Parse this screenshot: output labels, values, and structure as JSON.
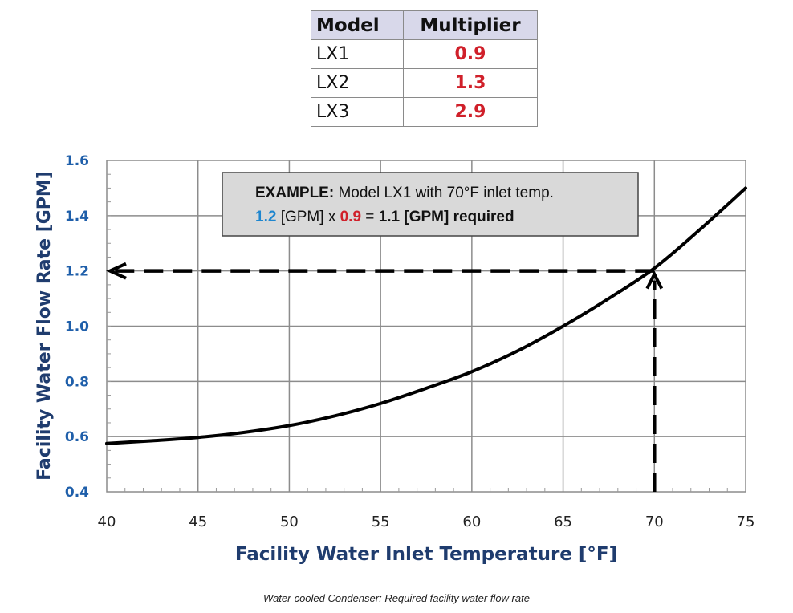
{
  "table": {
    "headers": [
      "Model",
      "Multiplier"
    ],
    "rows": [
      {
        "model": "LX1",
        "multiplier": "0.9"
      },
      {
        "model": "LX2",
        "multiplier": "1.3"
      },
      {
        "model": "LX3",
        "multiplier": "2.9"
      }
    ],
    "multiplier_color": "#d0202a"
  },
  "chart_data": {
    "type": "line",
    "xlabel": "Facility Water Inlet Temperature [°F]",
    "ylabel": "Facility Water Flow Rate [GPM]",
    "xlim": [
      40,
      75
    ],
    "ylim": [
      0.4,
      1.6
    ],
    "x_ticks": [
      "40",
      "45",
      "50",
      "55",
      "60",
      "65",
      "70",
      "75"
    ],
    "y_ticks": [
      "0.4",
      "0.6",
      "0.8",
      "1.0",
      "1.2",
      "1.4",
      "1.6"
    ],
    "grid": true,
    "series": [
      {
        "x": [
          40,
          42.5,
          45,
          47.5,
          50,
          52.5,
          55,
          57.5,
          60,
          62.5,
          65,
          67.5,
          70,
          72.5,
          75
        ],
        "y": [
          0.575,
          0.585,
          0.597,
          0.615,
          0.64,
          0.675,
          0.72,
          0.775,
          0.835,
          0.91,
          1.0,
          1.1,
          1.21,
          1.35,
          1.5
        ]
      }
    ],
    "example_guides": {
      "x": 70,
      "y": 1.2
    },
    "annotation": {
      "line1_bold": "EXAMPLE:",
      "line1_rest": " Model LX1 with 70°F inlet temp.",
      "val1": "1.2",
      "unit1": " [GPM] x ",
      "val2": "0.9",
      "eq": " = ",
      "result": "1.1 [GPM] required"
    },
    "colors": {
      "axis_label": "#1f3c6e",
      "y_tick": "#1f5faa",
      "blue_value": "#1e86cf",
      "red_value": "#d0202a"
    }
  },
  "caption": "Water-cooled Condenser: Required facility water flow rate"
}
